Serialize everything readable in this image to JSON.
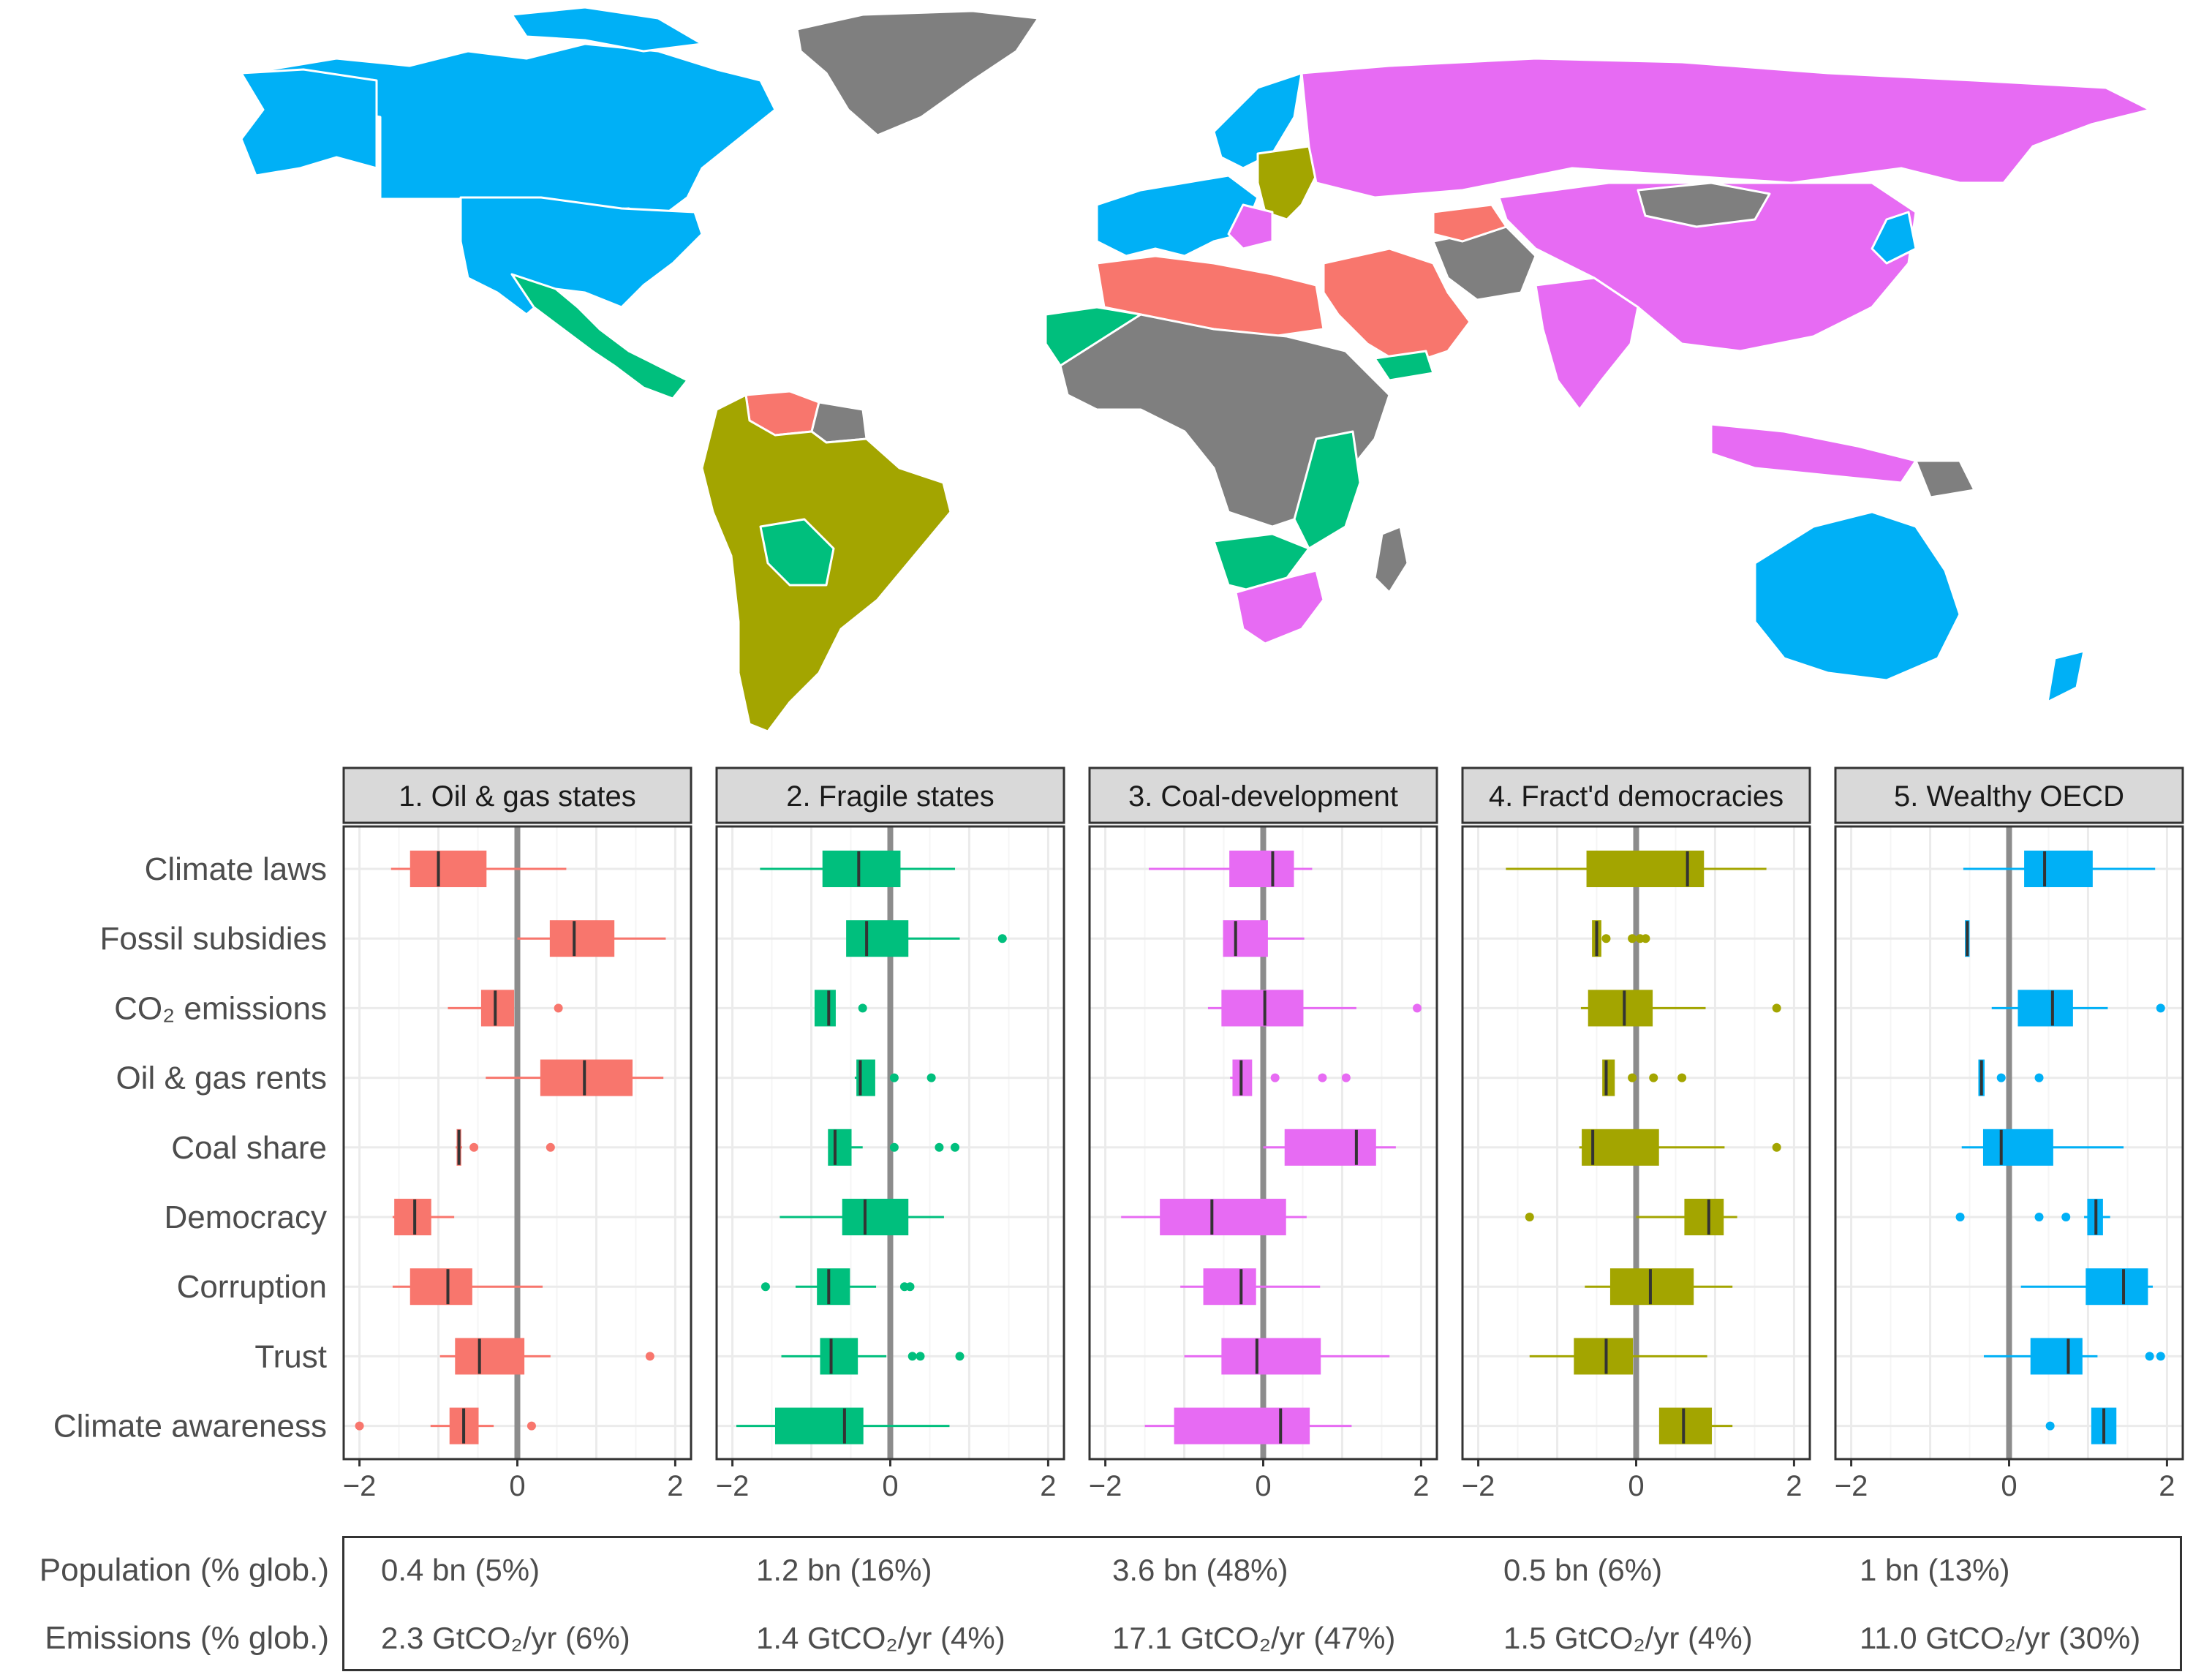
{
  "colors": {
    "oil_gas": "#F8766D",
    "fragile": "#00BF7D",
    "coal_dev": "#E76BF3",
    "fractured": "#A3A500",
    "wealthy": "#00B0F6",
    "no_data": "#7f7f7f"
  },
  "chart_data": {
    "type": "boxplot",
    "variables": [
      "Climate laws",
      "Fossil subsidies",
      "CO₂ emissions",
      "Oil & gas rents",
      "Coal share",
      "Democracy",
      "Corruption",
      "Trust",
      "Climate awareness"
    ],
    "xlim": [
      -2.2,
      2.2
    ],
    "x_ticks": [
      "−2",
      "0",
      "2"
    ],
    "x_tick_values": [
      -2,
      0,
      2
    ],
    "panels": [
      {
        "title": "1. Oil & gas states",
        "color": "#F8766D",
        "boxes": [
          {
            "wlo": -1.6,
            "q1": -1.35,
            "med": -1.0,
            "q3": -0.4,
            "whi": 0.62,
            "out": []
          },
          {
            "wlo": 0.0,
            "q1": 0.42,
            "med": 0.72,
            "q3": 1.22,
            "whi": 1.88,
            "out": []
          },
          {
            "wlo": -0.88,
            "q1": -0.45,
            "med": -0.28,
            "q3": -0.05,
            "whi": -0.05,
            "out": [
              0.52
            ]
          },
          {
            "wlo": -0.4,
            "q1": 0.3,
            "med": 0.85,
            "q3": 1.45,
            "whi": 1.85,
            "out": []
          },
          {
            "wlo": -0.78,
            "q1": -0.76,
            "med": -0.74,
            "q3": -0.72,
            "whi": -0.7,
            "out": [
              -0.55,
              0.42
            ]
          },
          {
            "wlo": -1.58,
            "q1": -1.55,
            "med": -1.3,
            "q3": -1.1,
            "whi": -0.8,
            "out": []
          },
          {
            "wlo": -1.58,
            "q1": -1.35,
            "med": -0.88,
            "q3": -0.58,
            "whi": 0.32,
            "out": []
          },
          {
            "wlo": -0.98,
            "q1": -0.78,
            "med": -0.48,
            "q3": 0.08,
            "whi": 0.42,
            "out": [
              1.68
            ]
          },
          {
            "wlo": -1.1,
            "q1": -0.85,
            "med": -0.68,
            "q3": -0.5,
            "whi": -0.3,
            "out": [
              -2.0,
              0.18
            ]
          }
        ]
      },
      {
        "title": "2. Fragile states",
        "color": "#00BF7D",
        "boxes": [
          {
            "wlo": -1.65,
            "q1": -0.85,
            "med": -0.4,
            "q3": 0.12,
            "whi": 0.82,
            "out": []
          },
          {
            "wlo": -0.55,
            "q1": -0.55,
            "med": -0.3,
            "q3": 0.22,
            "whi": 0.88,
            "out": [
              1.42
            ]
          },
          {
            "wlo": -0.95,
            "q1": -0.95,
            "med": -0.78,
            "q3": -0.7,
            "whi": -0.7,
            "out": [
              -0.35
            ]
          },
          {
            "wlo": -0.45,
            "q1": -0.42,
            "med": -0.38,
            "q3": -0.2,
            "whi": -0.2,
            "out": [
              0.05,
              0.52
            ]
          },
          {
            "wlo": -0.78,
            "q1": -0.78,
            "med": -0.7,
            "q3": -0.5,
            "whi": -0.35,
            "out": [
              0.05,
              0.62,
              0.82
            ]
          },
          {
            "wlo": -1.4,
            "q1": -0.6,
            "med": -0.32,
            "q3": 0.22,
            "whi": 0.68,
            "out": []
          },
          {
            "wlo": -1.2,
            "q1": -0.92,
            "med": -0.78,
            "q3": -0.52,
            "whi": -0.18,
            "out": [
              -1.58,
              0.18,
              0.25
            ]
          },
          {
            "wlo": -1.38,
            "q1": -0.88,
            "med": -0.75,
            "q3": -0.42,
            "whi": -0.05,
            "out": [
              0.28,
              0.38,
              0.88
            ]
          },
          {
            "wlo": -1.95,
            "q1": -1.45,
            "med": -0.58,
            "q3": -0.35,
            "whi": 0.75,
            "out": []
          }
        ]
      },
      {
        "title": "3. Coal-development",
        "color": "#E76BF3",
        "boxes": [
          {
            "wlo": -1.45,
            "q1": -0.42,
            "med": 0.12,
            "q3": 0.38,
            "whi": 0.62,
            "out": []
          },
          {
            "wlo": -0.5,
            "q1": -0.5,
            "med": -0.35,
            "q3": 0.05,
            "whi": 0.52,
            "out": []
          },
          {
            "wlo": -0.7,
            "q1": -0.52,
            "med": 0.02,
            "q3": 0.5,
            "whi": 1.18,
            "out": [
              1.95
            ]
          },
          {
            "wlo": -0.42,
            "q1": -0.38,
            "med": -0.28,
            "q3": -0.15,
            "whi": -0.15,
            "out": [
              0.15,
              0.75,
              1.05
            ]
          },
          {
            "wlo": 0.0,
            "q1": 0.28,
            "med": 1.18,
            "q3": 1.42,
            "whi": 1.68,
            "out": []
          },
          {
            "wlo": -1.8,
            "q1": -1.3,
            "med": -0.65,
            "q3": 0.28,
            "whi": 0.55,
            "out": []
          },
          {
            "wlo": -1.05,
            "q1": -0.75,
            "med": -0.28,
            "q3": -0.1,
            "whi": 0.72,
            "out": []
          },
          {
            "wlo": -1.0,
            "q1": -0.52,
            "med": -0.08,
            "q3": 0.72,
            "whi": 1.6,
            "out": []
          },
          {
            "wlo": -1.5,
            "q1": -1.12,
            "med": 0.22,
            "q3": 0.58,
            "whi": 1.12,
            "out": []
          }
        ]
      },
      {
        "title": "4. Fract'd democracies",
        "color": "#A3A500",
        "boxes": [
          {
            "wlo": -1.65,
            "q1": -0.62,
            "med": 0.65,
            "q3": 0.85,
            "whi": 1.65,
            "out": []
          },
          {
            "wlo": -0.55,
            "q1": -0.55,
            "med": -0.5,
            "q3": -0.45,
            "whi": -0.45,
            "out": [
              -0.38,
              -0.05,
              0.05,
              0.12
            ]
          },
          {
            "wlo": -0.7,
            "q1": -0.6,
            "med": -0.15,
            "q3": 0.2,
            "whi": 0.88,
            "out": [
              1.78
            ]
          },
          {
            "wlo": -0.42,
            "q1": -0.42,
            "med": -0.38,
            "q3": -0.28,
            "whi": -0.28,
            "out": [
              -0.05,
              0.22,
              0.58
            ]
          },
          {
            "wlo": -0.72,
            "q1": -0.68,
            "med": -0.55,
            "q3": 0.28,
            "whi": 1.12,
            "out": [
              1.78
            ]
          },
          {
            "wlo": 0.0,
            "q1": 0.62,
            "med": 0.92,
            "q3": 1.1,
            "whi": 1.28,
            "out": [
              -1.35
            ]
          },
          {
            "wlo": -0.65,
            "q1": -0.32,
            "med": 0.18,
            "q3": 0.72,
            "whi": 1.22,
            "out": []
          },
          {
            "wlo": -1.35,
            "q1": -0.78,
            "med": -0.38,
            "q3": -0.05,
            "whi": 0.9,
            "out": []
          },
          {
            "wlo": 0.3,
            "q1": 0.3,
            "med": 0.6,
            "q3": 0.95,
            "whi": 1.22,
            "out": []
          }
        ]
      },
      {
        "title": "5. Wealthy OECD",
        "color": "#00B0F6",
        "boxes": [
          {
            "wlo": -0.58,
            "q1": 0.2,
            "med": 0.45,
            "q3": 1.05,
            "whi": 1.85,
            "out": []
          },
          {
            "wlo": -0.55,
            "q1": -0.55,
            "med": -0.53,
            "q3": -0.51,
            "whi": -0.51,
            "out": []
          },
          {
            "wlo": -0.22,
            "q1": 0.12,
            "med": 0.55,
            "q3": 0.8,
            "whi": 1.25,
            "out": [
              1.92
            ]
          },
          {
            "wlo": -0.38,
            "q1": -0.38,
            "med": -0.35,
            "q3": -0.32,
            "whi": -0.32,
            "out": [
              -0.1,
              0.38
            ]
          },
          {
            "wlo": -0.6,
            "q1": -0.32,
            "med": -0.1,
            "q3": 0.55,
            "whi": 1.45,
            "out": []
          },
          {
            "wlo": 0.95,
            "q1": 1.0,
            "med": 1.1,
            "q3": 1.18,
            "whi": 1.28,
            "out": [
              -0.62,
              0.38,
              0.72
            ]
          },
          {
            "wlo": 0.15,
            "q1": 0.98,
            "med": 1.45,
            "q3": 1.75,
            "whi": 1.82,
            "out": []
          },
          {
            "wlo": -0.32,
            "q1": 0.28,
            "med": 0.75,
            "q3": 0.92,
            "whi": 1.12,
            "out": [
              1.78,
              1.92
            ]
          },
          {
            "wlo": 1.05,
            "q1": 1.05,
            "med": 1.2,
            "q3": 1.35,
            "whi": 1.35,
            "out": [
              0.52
            ]
          }
        ]
      }
    ]
  },
  "summary": {
    "population_label": "Population (% glob.)",
    "emissions_label": "Emissions (% glob.)",
    "population": [
      "0.4 bn (5%)",
      "1.2 bn (16%)",
      "3.6 bn (48%)",
      "0.5 bn (6%)",
      "1 bn (13%)"
    ],
    "emissions": [
      "2.3 GtCO₂/yr (6%)",
      "1.4 GtCO₂/yr (4%)",
      "17.1 GtCO₂/yr (47%)",
      "1.5 GtCO₂/yr (4%)",
      "11.0 GtCO₂/yr (30%)"
    ]
  }
}
